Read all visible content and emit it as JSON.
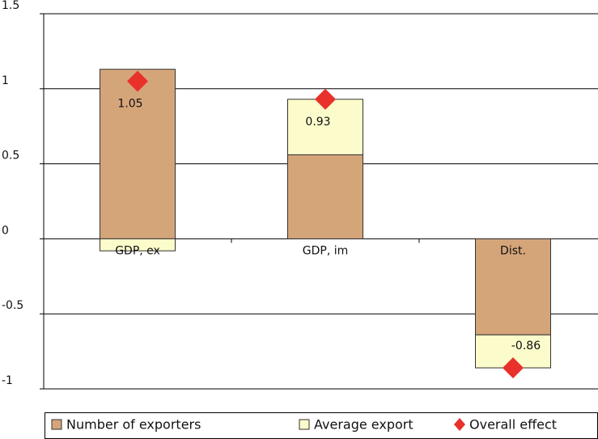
{
  "chart_data": {
    "type": "bar",
    "stacked": true,
    "categories": [
      "GDP, ex",
      "GDP, im",
      "Dist."
    ],
    "series": [
      {
        "name": "Number of exporters",
        "color": "#d5a57a",
        "values": [
          1.13,
          0.56,
          -0.64
        ]
      },
      {
        "name": "Average export",
        "color": "#fbfbcb",
        "values": [
          -0.08,
          0.37,
          -0.22
        ]
      }
    ],
    "overall": {
      "name": "Overall effect",
      "color": "#e8312a",
      "values": [
        1.05,
        0.93,
        -0.86
      ]
    },
    "ylim": [
      -1,
      1.5
    ],
    "yticks": [
      -1,
      -0.5,
      0,
      0.5,
      1,
      1.5
    ],
    "grid": true,
    "legend": "bottom"
  }
}
